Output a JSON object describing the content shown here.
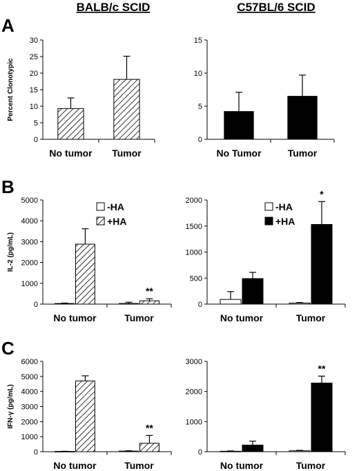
{
  "column_titles": [
    "BALB/c SCID",
    "C57BL/6 SCID"
  ],
  "panel_letters": [
    "A",
    "B",
    "C"
  ],
  "legend": {
    "neg": "-HA",
    "pos": "+HA"
  },
  "colors": {
    "bar_black": "#000000",
    "bar_white": "#ffffff",
    "hatch": "#000000"
  },
  "chart_data": [
    {
      "type": "bar",
      "panel": "A",
      "strain": "BALB/c SCID",
      "fill": "hatched",
      "ylabel": "Percent Clonotypic",
      "ylim": [
        0,
        30
      ],
      "yticks": [
        0,
        5,
        10,
        15,
        20,
        25,
        30
      ],
      "categories": [
        "No tumor",
        "Tumor"
      ],
      "series": [
        {
          "values": [
            9.3,
            18.1
          ],
          "errors": [
            3.2,
            7.0
          ]
        }
      ],
      "annotations": [
        "",
        ""
      ]
    },
    {
      "type": "bar",
      "panel": "A",
      "strain": "C57BL/6 SCID",
      "fill": "solid",
      "ylabel": "",
      "ylim": [
        0,
        15
      ],
      "yticks": [
        0,
        5,
        10,
        15
      ],
      "categories": [
        "No Tumor",
        "Tumor"
      ],
      "series": [
        {
          "values": [
            4.2,
            6.5
          ],
          "errors": [
            2.9,
            3.2
          ]
        }
      ],
      "annotations": [
        "",
        ""
      ]
    },
    {
      "type": "bar",
      "panel": "B",
      "strain": "BALB/c SCID",
      "fill": "hatched",
      "ylabel": "IL-2 (pg/mL)",
      "ylim": [
        0,
        5000
      ],
      "yticks": [
        0,
        1000,
        2000,
        3000,
        4000,
        5000
      ],
      "categories": [
        "No tumor",
        "Tumor"
      ],
      "series": [
        {
          "name": "-HA",
          "values": [
            30,
            30
          ],
          "errors": [
            20,
            60
          ]
        },
        {
          "name": "+HA",
          "values": [
            2880,
            160
          ],
          "errors": [
            740,
            100
          ]
        }
      ],
      "annotations": [
        "",
        "**"
      ],
      "legend": true
    },
    {
      "type": "bar",
      "panel": "B",
      "strain": "C57BL/6 SCID",
      "fill": "solid",
      "ylabel": "",
      "ylim": [
        0,
        2000
      ],
      "yticks": [
        0,
        500,
        1000,
        1500,
        2000
      ],
      "categories": [
        "No tumor",
        "Tumor"
      ],
      "series": [
        {
          "name": "-HA",
          "values": [
            90,
            20
          ],
          "errors": [
            150,
            10
          ]
        },
        {
          "name": "+HA",
          "values": [
            490,
            1530
          ],
          "errors": [
            120,
            440
          ]
        }
      ],
      "annotations": [
        "",
        "*"
      ],
      "legend": true
    },
    {
      "type": "bar",
      "panel": "C",
      "strain": "BALB/c SCID",
      "fill": "hatched",
      "ylabel": "IFN-γ (pg/mL)",
      "ylim": [
        0,
        6000
      ],
      "yticks": [
        0,
        1000,
        2000,
        3000,
        4000,
        5000,
        6000
      ],
      "categories": [
        "No tumor",
        "Tumor"
      ],
      "series": [
        {
          "name": "-HA",
          "values": [
            20,
            40
          ],
          "errors": [
            10,
            20
          ]
        },
        {
          "name": "+HA",
          "values": [
            4700,
            560
          ],
          "errors": [
            340,
            520
          ]
        }
      ],
      "annotations": [
        "",
        "**"
      ]
    },
    {
      "type": "bar",
      "panel": "C",
      "strain": "C57BL/6 SCID",
      "fill": "solid",
      "ylabel": "",
      "ylim": [
        0,
        3000
      ],
      "yticks": [
        0,
        1000,
        2000,
        3000
      ],
      "categories": [
        "No tumor",
        "Tumor"
      ],
      "series": [
        {
          "name": "-HA",
          "values": [
            15,
            30
          ],
          "errors": [
            10,
            15
          ]
        },
        {
          "name": "+HA",
          "values": [
            220,
            2280
          ],
          "errors": [
            130,
            230
          ]
        }
      ],
      "annotations": [
        "",
        "**"
      ]
    }
  ]
}
